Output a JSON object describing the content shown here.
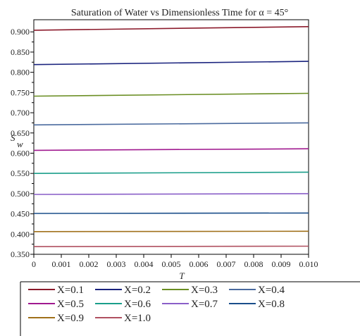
{
  "chart_data": {
    "type": "line",
    "title": "Saturation of Water vs Dimensionless Time  for α = 45°",
    "xlabel": "T",
    "ylabel_main": "S",
    "ylabel_sub": "w",
    "xlim": [
      0,
      0.01
    ],
    "ylim": [
      0.35,
      0.93
    ],
    "x_ticks": [
      0,
      0.001,
      0.002,
      0.003,
      0.004,
      0.005,
      0.006,
      0.007,
      0.008,
      0.009,
      0.01
    ],
    "x_tick_labels": [
      "0",
      "0.001",
      "0.002",
      "0.003",
      "0.004",
      "0.005",
      "0.006",
      "0.007",
      "0.008",
      "0.009",
      "0.010"
    ],
    "y_ticks": [
      0.35,
      0.4,
      0.45,
      0.5,
      0.55,
      0.6,
      0.65,
      0.7,
      0.75,
      0.8,
      0.85,
      0.9
    ],
    "y_tick_labels": [
      "0.350",
      "0.400",
      "0.450",
      "0.500",
      "0.550",
      "0.600",
      "0.650",
      "0.700",
      "0.750",
      "0.800",
      "0.850",
      "0.900"
    ],
    "grid": false,
    "legend_position": "bottom",
    "x": [
      0,
      0.01
    ],
    "series": [
      {
        "name": "X=0.1",
        "color": "#8b1a2b",
        "values": [
          0.904,
          0.913
        ]
      },
      {
        "name": "X=0.2",
        "color": "#1a237e",
        "values": [
          0.819,
          0.827
        ]
      },
      {
        "name": "X=0.3",
        "color": "#6a8e23",
        "values": [
          0.741,
          0.748
        ]
      },
      {
        "name": "X=0.4",
        "color": "#4a6a9e",
        "values": [
          0.67,
          0.675
        ]
      },
      {
        "name": "X=0.5",
        "color": "#a0198f",
        "values": [
          0.607,
          0.611
        ]
      },
      {
        "name": "X=0.6",
        "color": "#1a9e8a",
        "values": [
          0.55,
          0.553
        ]
      },
      {
        "name": "X=0.7",
        "color": "#8a5fc8",
        "values": [
          0.498,
          0.5
        ]
      },
      {
        "name": "X=0.8",
        "color": "#1a4e8a",
        "values": [
          0.451,
          0.452
        ]
      },
      {
        "name": "X=0.9",
        "color": "#a0701a",
        "values": [
          0.406,
          0.407
        ]
      },
      {
        "name": "X=1.0",
        "color": "#b05060",
        "values": [
          0.369,
          0.37
        ]
      }
    ]
  }
}
